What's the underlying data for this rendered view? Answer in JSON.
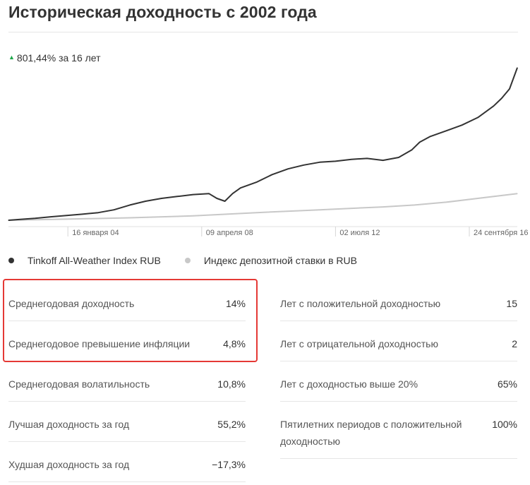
{
  "header": {
    "title": "Историческая доходность с 2002 года"
  },
  "summary": {
    "arrow": "▲",
    "text": "801,44% за 16 лет"
  },
  "chart_data": {
    "type": "line",
    "x_tick_labels": [
      "16 января 04",
      "09 апреля 08",
      "02 июля 12",
      "24 сентября 16"
    ],
    "x_tick_dates": [
      "2004-01-16",
      "2008-04-09",
      "2012-07-02",
      "2016-09-24"
    ],
    "x_range": [
      "2002-03-01",
      "2018-04-01"
    ],
    "y_axis": "hidden",
    "grid": false,
    "legend_placement": "bottom",
    "series": [
      {
        "name": "Tinkoff All-Weather Index RUB",
        "color": "#333333",
        "x": [
          "2002-03-01",
          "2002-07-01",
          "2003-01-01",
          "2003-07-01",
          "2004-01-01",
          "2004-07-01",
          "2005-01-01",
          "2005-07-01",
          "2006-01-01",
          "2006-07-01",
          "2007-01-01",
          "2007-07-01",
          "2008-01-01",
          "2008-07-01",
          "2008-10-01",
          "2009-01-01",
          "2009-04-01",
          "2009-07-01",
          "2010-01-01",
          "2010-07-01",
          "2011-01-01",
          "2011-07-01",
          "2012-01-01",
          "2012-07-01",
          "2013-01-01",
          "2013-07-01",
          "2014-01-01",
          "2014-07-01",
          "2014-12-01",
          "2015-03-01",
          "2015-07-01",
          "2016-01-01",
          "2016-07-01",
          "2017-01-01",
          "2017-07-01",
          "2017-10-01",
          "2018-01-01",
          "2018-04-01"
        ],
        "y": [
          100,
          104,
          110,
          118,
          125,
          132,
          140,
          155,
          180,
          200,
          215,
          225,
          235,
          240,
          215,
          200,
          240,
          270,
          300,
          340,
          370,
          390,
          405,
          410,
          420,
          425,
          415,
          430,
          470,
          510,
          540,
          570,
          600,
          640,
          700,
          740,
          790,
          901
        ]
      },
      {
        "name": "Индекс депозитной ставки в RUB",
        "color": "#c8c8c8",
        "x": [
          "2002-03-01",
          "2004-01-01",
          "2006-01-01",
          "2008-01-01",
          "2010-01-01",
          "2012-01-01",
          "2014-01-01",
          "2015-01-01",
          "2016-01-01",
          "2018-04-01"
        ],
        "y": [
          100,
          106,
          113,
          123,
          140,
          155,
          170,
          180,
          195,
          240
        ]
      }
    ]
  },
  "legend": [
    {
      "label": "Tinkoff All-Weather Index RUB",
      "color": "#333333"
    },
    {
      "label": "Индекс депозитной ставки в RUB",
      "color": "#c8c8c8"
    }
  ],
  "stats_left": [
    {
      "label": "Среднегодовая доходность",
      "value": "14%"
    },
    {
      "label": "Среднегодовое превышение инфляции",
      "value": "4,8%"
    },
    {
      "label": "Среднегодовая волатильность",
      "value": "10,8%"
    },
    {
      "label": "Лучшая доходность за год",
      "value": "55,2%"
    },
    {
      "label": "Худшая доходность за год",
      "value": "−17,3%"
    }
  ],
  "stats_right": [
    {
      "label": "Лет с положительной доходностью",
      "value": "15"
    },
    {
      "label": "Лет с отрицательной доходностью",
      "value": "2"
    },
    {
      "label": "Лет с доходностью выше 20%",
      "value": "65%"
    },
    {
      "label": "Пятилетних периодов с положительной доходностью",
      "value": "100%"
    }
  ]
}
